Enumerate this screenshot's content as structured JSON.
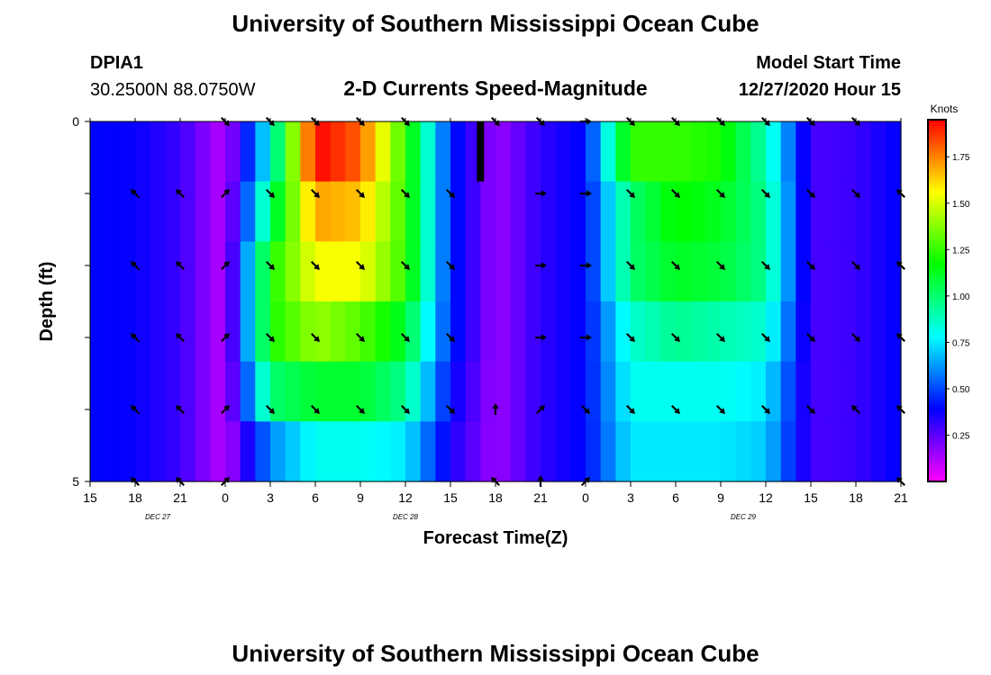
{
  "header": {
    "title": "University of Southern Mississippi Ocean Cube",
    "station_id": "DPIA1",
    "coordinates": "30.2500N 88.0750W",
    "plot_title": "2-D Currents Speed-Magnitude",
    "model_label": "Model Start Time",
    "model_time": "12/27/2020 Hour 15"
  },
  "footer": {
    "title": "University of Southern Mississippi Ocean Cube"
  },
  "chart_data": {
    "type": "heatmap",
    "title": "2-D Currents Speed-Magnitude",
    "xlabel": "Forecast Time(Z)",
    "ylabel": "Depth (ft)",
    "x_ticks": [
      "15",
      "18",
      "21",
      "0",
      "3",
      "6",
      "9",
      "12",
      "15",
      "18",
      "21",
      "0",
      "3",
      "6",
      "9",
      "12",
      "15",
      "18",
      "21"
    ],
    "date_labels": [
      {
        "text": "DEC  27",
        "tick_index": 1.5
      },
      {
        "text": "DEC  28",
        "tick_index": 7
      },
      {
        "text": "DEC  29",
        "tick_index": 14.5
      }
    ],
    "y_range": [
      0,
      5
    ],
    "y_ticks": [
      "0",
      "5"
    ],
    "depth_levels": [
      0,
      1,
      2,
      3,
      4,
      5
    ],
    "time_hours": [
      0,
      3,
      6,
      9,
      12,
      15,
      18,
      21,
      24,
      27,
      30,
      33,
      36,
      39,
      42,
      45,
      48,
      51,
      54
    ],
    "speed_knots": [
      [
        0.4,
        0.38,
        0.3,
        0.1,
        0.8,
        1.95,
        1.8,
        1.25,
        0.45,
        0.15,
        0.32,
        0.4,
        1.25,
        1.25,
        1.2,
        0.9,
        0.28,
        0.3,
        0.4
      ],
      [
        0.4,
        0.38,
        0.3,
        0.1,
        1.0,
        1.7,
        1.65,
        1.25,
        0.45,
        0.15,
        0.32,
        0.4,
        1.0,
        1.18,
        1.12,
        0.95,
        0.28,
        0.3,
        0.4
      ],
      [
        0.4,
        0.38,
        0.3,
        0.1,
        1.2,
        1.55,
        1.55,
        1.25,
        0.45,
        0.15,
        0.32,
        0.4,
        1.0,
        1.12,
        1.08,
        0.95,
        0.28,
        0.3,
        0.4
      ],
      [
        0.4,
        0.38,
        0.3,
        0.1,
        1.2,
        1.4,
        1.3,
        1.1,
        0.45,
        0.15,
        0.32,
        0.4,
        0.85,
        0.95,
        0.9,
        0.85,
        0.28,
        0.3,
        0.4
      ],
      [
        0.4,
        0.38,
        0.3,
        0.1,
        1.0,
        1.1,
        1.1,
        0.95,
        0.4,
        0.15,
        0.32,
        0.4,
        0.8,
        0.8,
        0.8,
        0.75,
        0.28,
        0.3,
        0.4
      ],
      [
        0.4,
        0.38,
        0.3,
        0.1,
        0.6,
        0.8,
        0.8,
        0.75,
        0.35,
        0.15,
        0.32,
        0.4,
        0.75,
        0.75,
        0.75,
        0.7,
        0.28,
        0.3,
        0.4
      ]
    ],
    "vectors": [
      {
        "depth": 0,
        "hour": 9,
        "dir": "SE"
      },
      {
        "depth": 0,
        "hour": 12,
        "dir": "SE"
      },
      {
        "depth": 0,
        "hour": 15,
        "dir": "SE"
      },
      {
        "depth": 0,
        "hour": 18,
        "dir": "SE"
      },
      {
        "depth": 0,
        "hour": 21,
        "dir": "SE"
      },
      {
        "depth": 0,
        "hour": 27,
        "dir": "SE"
      },
      {
        "depth": 0,
        "hour": 30,
        "dir": "SE"
      },
      {
        "depth": 0,
        "hour": 33,
        "dir": "E"
      },
      {
        "depth": 0,
        "hour": 36,
        "dir": "SE"
      },
      {
        "depth": 0,
        "hour": 39,
        "dir": "SE"
      },
      {
        "depth": 0,
        "hour": 42,
        "dir": "SE"
      },
      {
        "depth": 0,
        "hour": 45,
        "dir": "SE"
      },
      {
        "depth": 0,
        "hour": 48,
        "dir": "SE"
      },
      {
        "depth": 0,
        "hour": 51,
        "dir": "SE"
      },
      {
        "depth": 1,
        "hour": 3,
        "dir": "NW"
      },
      {
        "depth": 1,
        "hour": 6,
        "dir": "NW"
      },
      {
        "depth": 1,
        "hour": 9,
        "dir": "NE"
      },
      {
        "depth": 1,
        "hour": 12,
        "dir": "SE"
      },
      {
        "depth": 1,
        "hour": 15,
        "dir": "SE"
      },
      {
        "depth": 1,
        "hour": 18,
        "dir": "SE"
      },
      {
        "depth": 1,
        "hour": 21,
        "dir": "SE"
      },
      {
        "depth": 1,
        "hour": 24,
        "dir": "SE"
      },
      {
        "depth": 1,
        "hour": 30,
        "dir": "E"
      },
      {
        "depth": 1,
        "hour": 33,
        "dir": "E"
      },
      {
        "depth": 1,
        "hour": 36,
        "dir": "SE"
      },
      {
        "depth": 1,
        "hour": 39,
        "dir": "SE"
      },
      {
        "depth": 1,
        "hour": 42,
        "dir": "SE"
      },
      {
        "depth": 1,
        "hour": 45,
        "dir": "SE"
      },
      {
        "depth": 1,
        "hour": 48,
        "dir": "SE"
      },
      {
        "depth": 1,
        "hour": 51,
        "dir": "SE"
      },
      {
        "depth": 1,
        "hour": 54,
        "dir": "NW"
      },
      {
        "depth": 1,
        "hour": 57,
        "dir": "SE"
      },
      {
        "depth": 2,
        "hour": 3,
        "dir": "NW"
      },
      {
        "depth": 2,
        "hour": 6,
        "dir": "NW"
      },
      {
        "depth": 2,
        "hour": 9,
        "dir": "NE"
      },
      {
        "depth": 2,
        "hour": 12,
        "dir": "SE"
      },
      {
        "depth": 2,
        "hour": 15,
        "dir": "SE"
      },
      {
        "depth": 2,
        "hour": 18,
        "dir": "SE"
      },
      {
        "depth": 2,
        "hour": 21,
        "dir": "SE"
      },
      {
        "depth": 2,
        "hour": 24,
        "dir": "SE"
      },
      {
        "depth": 2,
        "hour": 30,
        "dir": "E"
      },
      {
        "depth": 2,
        "hour": 33,
        "dir": "E"
      },
      {
        "depth": 2,
        "hour": 36,
        "dir": "SE"
      },
      {
        "depth": 2,
        "hour": 39,
        "dir": "SE"
      },
      {
        "depth": 2,
        "hour": 42,
        "dir": "SE"
      },
      {
        "depth": 2,
        "hour": 45,
        "dir": "SE"
      },
      {
        "depth": 2,
        "hour": 48,
        "dir": "SE"
      },
      {
        "depth": 2,
        "hour": 51,
        "dir": "SE"
      },
      {
        "depth": 2,
        "hour": 54,
        "dir": "NW"
      },
      {
        "depth": 2,
        "hour": 57,
        "dir": "SE"
      },
      {
        "depth": 3,
        "hour": 3,
        "dir": "NW"
      },
      {
        "depth": 3,
        "hour": 6,
        "dir": "NW"
      },
      {
        "depth": 3,
        "hour": 9,
        "dir": "NE"
      },
      {
        "depth": 3,
        "hour": 12,
        "dir": "SE"
      },
      {
        "depth": 3,
        "hour": 15,
        "dir": "SE"
      },
      {
        "depth": 3,
        "hour": 18,
        "dir": "SE"
      },
      {
        "depth": 3,
        "hour": 21,
        "dir": "SE"
      },
      {
        "depth": 3,
        "hour": 24,
        "dir": "SE"
      },
      {
        "depth": 3,
        "hour": 30,
        "dir": "E"
      },
      {
        "depth": 3,
        "hour": 33,
        "dir": "E"
      },
      {
        "depth": 3,
        "hour": 36,
        "dir": "SE"
      },
      {
        "depth": 3,
        "hour": 39,
        "dir": "SE"
      },
      {
        "depth": 3,
        "hour": 42,
        "dir": "SE"
      },
      {
        "depth": 3,
        "hour": 45,
        "dir": "SE"
      },
      {
        "depth": 3,
        "hour": 48,
        "dir": "SE"
      },
      {
        "depth": 3,
        "hour": 51,
        "dir": "SE"
      },
      {
        "depth": 3,
        "hour": 54,
        "dir": "NW"
      },
      {
        "depth": 3,
        "hour": 57,
        "dir": "SE"
      },
      {
        "depth": 4,
        "hour": 3,
        "dir": "NW"
      },
      {
        "depth": 4,
        "hour": 6,
        "dir": "NW"
      },
      {
        "depth": 4,
        "hour": 9,
        "dir": "NE"
      },
      {
        "depth": 4,
        "hour": 12,
        "dir": "SE"
      },
      {
        "depth": 4,
        "hour": 15,
        "dir": "SE"
      },
      {
        "depth": 4,
        "hour": 18,
        "dir": "SE"
      },
      {
        "depth": 4,
        "hour": 21,
        "dir": "SE"
      },
      {
        "depth": 4,
        "hour": 24,
        "dir": "SE"
      },
      {
        "depth": 4,
        "hour": 27,
        "dir": "N"
      },
      {
        "depth": 4,
        "hour": 30,
        "dir": "NE"
      },
      {
        "depth": 4,
        "hour": 33,
        "dir": "SE"
      },
      {
        "depth": 4,
        "hour": 36,
        "dir": "SE"
      },
      {
        "depth": 4,
        "hour": 39,
        "dir": "SE"
      },
      {
        "depth": 4,
        "hour": 42,
        "dir": "SE"
      },
      {
        "depth": 4,
        "hour": 45,
        "dir": "SE"
      },
      {
        "depth": 4,
        "hour": 48,
        "dir": "SE"
      },
      {
        "depth": 4,
        "hour": 51,
        "dir": "NW"
      },
      {
        "depth": 4,
        "hour": 54,
        "dir": "NW"
      },
      {
        "depth": 4,
        "hour": 57,
        "dir": "SE"
      },
      {
        "depth": 5,
        "hour": 3,
        "dir": "NW"
      },
      {
        "depth": 5,
        "hour": 6,
        "dir": "NW"
      },
      {
        "depth": 5,
        "hour": 9,
        "dir": "NE"
      },
      {
        "depth": 5,
        "hour": 27,
        "dir": "NW"
      },
      {
        "depth": 5,
        "hour": 30,
        "dir": "N"
      },
      {
        "depth": 5,
        "hour": 33,
        "dir": "NE"
      },
      {
        "depth": 5,
        "hour": 54,
        "dir": "NW"
      },
      {
        "depth": 5,
        "hour": 57,
        "dir": "NE"
      }
    ],
    "current_time_marker_hour": 26,
    "colorbar": {
      "label": "Knots",
      "range": [
        0,
        1.95
      ],
      "ticks": [
        "0.25",
        "0.50",
        "0.75",
        "1.00",
        "1.25",
        "1.50",
        "1.75"
      ],
      "tick_values": [
        0.25,
        0.5,
        0.75,
        1.0,
        1.25,
        1.5,
        1.75
      ],
      "colors": [
        "#ff00ff",
        "#7f00ff",
        "#0000ff",
        "#007fff",
        "#00ffff",
        "#00ff7f",
        "#00ff00",
        "#7fff00",
        "#ffff00",
        "#ff7f00",
        "#ff0000"
      ]
    }
  }
}
